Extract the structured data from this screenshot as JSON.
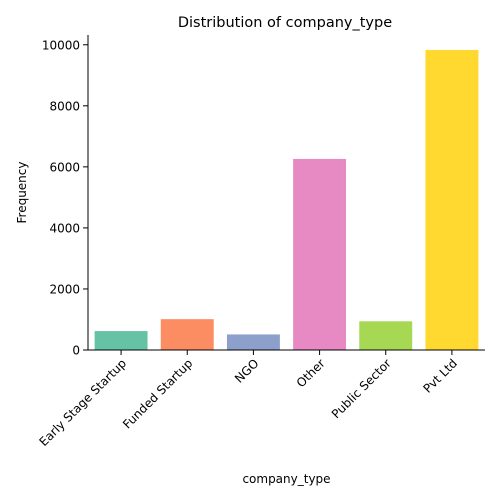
{
  "chart_data": {
    "type": "bar",
    "title": "Distribution of company_type",
    "xlabel": "company_type",
    "ylabel": "Frequency",
    "categories": [
      "Early Stage Startup",
      "Funded Startup",
      "NGO",
      "Other",
      "Public Sector",
      "Pvt Ltd"
    ],
    "values": [
      620,
      1010,
      510,
      6260,
      940,
      9830
    ],
    "colors": [
      "#66c2a5",
      "#fc8d62",
      "#8da0cb",
      "#e78ac3",
      "#a6d854",
      "#ffd92f"
    ],
    "yticks": [
      0,
      2000,
      4000,
      6000,
      8000,
      10000
    ],
    "ylim": [
      0,
      10320
    ],
    "grid": false,
    "legend": false
  }
}
